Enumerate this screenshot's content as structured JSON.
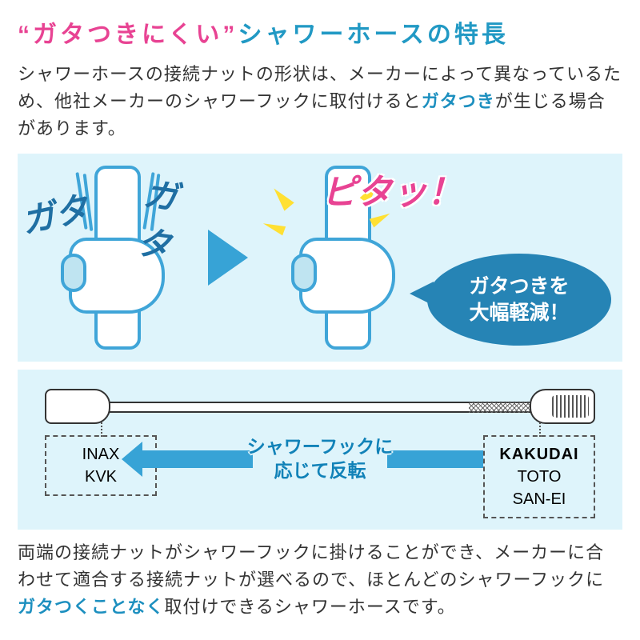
{
  "title": {
    "quoted": "“ガタつきにくい”",
    "rest": "シャワーホースの特長"
  },
  "intro": {
    "part1": "シャワーホースの接続ナットの形状は、メーカーによって異なっているため、他社メーカーのシャワーフックに取付けると",
    "em": "ガタつき",
    "part2": "が生じる場合があります。"
  },
  "panel1": {
    "gata": "ガタ",
    "pita": "ピタッ！",
    "bubble_l1": "ガタつきを",
    "bubble_l2": "大幅軽減！"
  },
  "panel2": {
    "left_box": {
      "l1": "INAX",
      "l2": "KVK"
    },
    "center": {
      "l1": "シャワーフックに",
      "l2": "応じて反転"
    },
    "right_box": {
      "l1": "KAKUDAI",
      "l2": "TOTO",
      "l3": "SAN-EI"
    }
  },
  "outro": {
    "part1": "両端の接続ナットがシャワーフックに掛けることができ、メーカーに合わせて適合する接続ナットが選べるので、ほとんどのシャワーフックに",
    "em": "ガタつくことなく",
    "part2": "取付けできるシャワーホースです。"
  },
  "colors": {
    "accent_blue": "#2199c4",
    "accent_pink": "#e84393",
    "panel_bg": "#def4fb",
    "arrow": "#37a3d6",
    "bubble": "#2684b5",
    "spark": "#ffe033"
  }
}
